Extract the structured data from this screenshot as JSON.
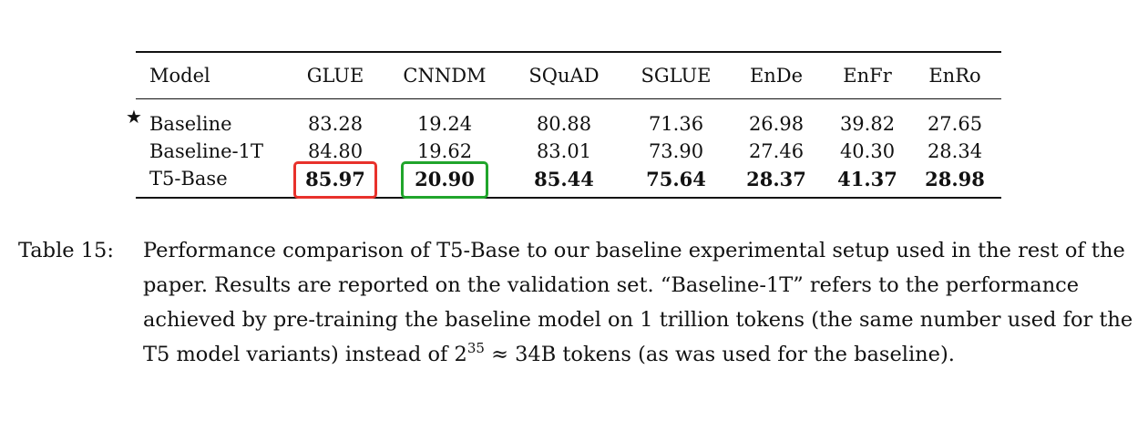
{
  "table": {
    "headers": [
      "Model",
      "GLUE",
      "CNNDM",
      "SQuAD",
      "SGLUE",
      "EnDe",
      "EnFr",
      "EnRo"
    ],
    "rows": [
      {
        "marker": "★",
        "model": "Baseline",
        "values": [
          "83.28",
          "19.24",
          "80.88",
          "71.36",
          "26.98",
          "39.82",
          "27.65"
        ]
      },
      {
        "marker": "",
        "model": "Baseline-1T",
        "values": [
          "84.80",
          "19.62",
          "83.01",
          "73.90",
          "27.46",
          "40.30",
          "28.34"
        ]
      },
      {
        "marker": "",
        "model": "T5-Base",
        "values": [
          "85.97",
          "20.90",
          "85.44",
          "75.64",
          "28.37",
          "41.37",
          "28.98"
        ]
      }
    ],
    "highlight_colors": {
      "glue_box": "#e8312b",
      "cnndm_box": "#20a52b"
    }
  },
  "caption": {
    "label": "Table 15:",
    "text_1": "Performance comparison of T5-Base to our baseline experimental setup used in the rest of the paper. Results are reported on the validation set. “Baseline-1T” refers to the performance achieved by pre-training the baseline model on 1 trillion tokens (the same number used for the T5 model variants) instead of 2",
    "superscript": "35",
    "text_2": " ≈ 34B tokens (as was used for the baseline)."
  }
}
